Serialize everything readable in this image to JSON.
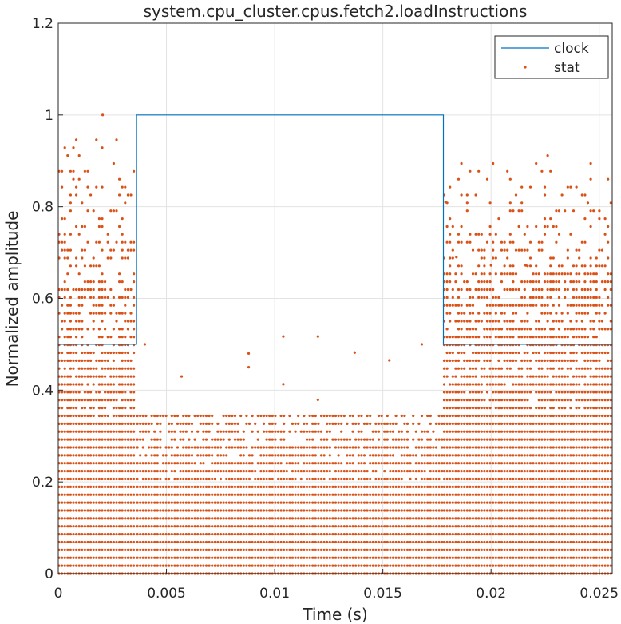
{
  "chart_data": {
    "type": "line",
    "title": "system.cpu_cluster.cpus.fetch2.loadInstructions",
    "xlabel": "Time (s)",
    "ylabel": "Normalized amplitude",
    "xlim": [
      0,
      0.0256
    ],
    "ylim": [
      0,
      1.2
    ],
    "xticks": [
      0,
      0.005,
      0.01,
      0.015,
      0.02,
      0.025
    ],
    "xtick_labels": [
      "0",
      "0.005",
      "0.01",
      "0.015",
      "0.02",
      "0.025"
    ],
    "yticks": [
      0,
      0.2,
      0.4,
      0.6,
      0.8,
      1,
      1.2
    ],
    "ytick_labels": [
      "0",
      "0.2",
      "0.4",
      "0.6",
      "0.8",
      "1",
      "1.2"
    ],
    "grid": true,
    "legend_position": "top-right",
    "series": [
      {
        "name": "clock",
        "style": "line",
        "color": "#0072BD",
        "x": [
          0,
          0.00362,
          0.00362,
          0.0178,
          0.0178,
          0.0256
        ],
        "y": [
          0.5,
          0.5,
          1.0,
          1.0,
          0.5,
          0.5
        ]
      },
      {
        "name": "stat",
        "style": "markers",
        "color": "#D95319",
        "segments": [
          {
            "x_range": [
              0,
              0.00362
            ],
            "levels_step": 0.0172,
            "max_level": 0.62,
            "sparse_upper_max": 0.95
          },
          {
            "x_range": [
              0.00362,
              0.0178
            ],
            "levels_step": 0.0172,
            "max_level": 0.345
          },
          {
            "x_range": [
              0.0178,
              0.0256
            ],
            "levels_step": 0.0172,
            "max_level": 0.655,
            "sparse_upper_max": 0.92
          }
        ],
        "outliers": [
          {
            "x": 0.00205,
            "y": 1.0
          },
          {
            "x": 0.004,
            "y": 0.5
          },
          {
            "x": 0.0057,
            "y": 0.43
          },
          {
            "x": 0.0088,
            "y": 0.48
          },
          {
            "x": 0.0088,
            "y": 0.45
          },
          {
            "x": 0.0104,
            "y": 0.517
          },
          {
            "x": 0.0104,
            "y": 0.413
          },
          {
            "x": 0.012,
            "y": 0.517
          },
          {
            "x": 0.012,
            "y": 0.379
          },
          {
            "x": 0.0137,
            "y": 0.482
          },
          {
            "x": 0.0153,
            "y": 0.465
          },
          {
            "x": 0.0168,
            "y": 0.5
          },
          {
            "x": 0.0179,
            "y": 0.81
          },
          {
            "x": 0.0184,
            "y": 0.69
          },
          {
            "x": 0.02,
            "y": 0.672
          },
          {
            "x": 0.0216,
            "y": 0.672
          }
        ]
      }
    ]
  }
}
